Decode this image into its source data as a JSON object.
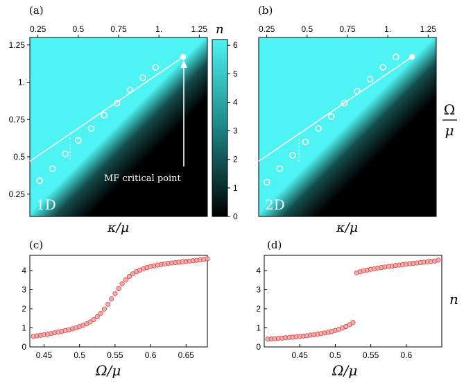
{
  "panels": {
    "a": {
      "label": "(a)",
      "dim_label": "1D"
    },
    "b": {
      "label": "(b)",
      "dim_label": "2D"
    },
    "c": {
      "label": "(c)"
    },
    "d": {
      "label": "(d)"
    }
  },
  "annotation": "MF critical point",
  "colorbar": {
    "title": "n",
    "ticks": [
      "0",
      "1",
      "2",
      "3",
      "4",
      "5",
      "6"
    ],
    "min": 0,
    "max": 6.2,
    "color_low": "#000000",
    "color_high": "#4ef3f3"
  },
  "labels": {
    "kappa_a": "κ/μ",
    "kappa_b": "κ/μ",
    "omega_right_num": "Ω",
    "omega_right_den": "μ",
    "omega_c": "Ω/μ",
    "omega_d": "Ω/μ",
    "n_right": "n"
  },
  "colors": {
    "marker_fill": "#f4a0a0",
    "marker_edge": "#d93030"
  },
  "chart_data": [
    {
      "panel": "a",
      "type": "heatmap",
      "xlim": [
        0.2,
        1.3
      ],
      "ylim": [
        0.1,
        1.3
      ],
      "x_ticks": [
        "0.25",
        "0.5",
        "0.75",
        "1.",
        "1.25"
      ],
      "x_tick_values": [
        0.25,
        0.5,
        0.75,
        1.0,
        1.25
      ],
      "y_ticks": [
        "0.25",
        "0.5",
        "0.75",
        "1.",
        "1.25"
      ],
      "y_tick_values": [
        0.25,
        0.5,
        0.75,
        1.0,
        1.25
      ],
      "critical_point": [
        1.15,
        1.17
      ],
      "mean_field_line": [
        [
          0.2,
          0.47
        ],
        [
          1.15,
          1.17
        ]
      ],
      "circles": [
        [
          0.26,
          0.34
        ],
        [
          0.34,
          0.42
        ],
        [
          0.42,
          0.52
        ],
        [
          0.5,
          0.61
        ],
        [
          0.58,
          0.69
        ],
        [
          0.66,
          0.78
        ],
        [
          0.74,
          0.86
        ],
        [
          0.82,
          0.95
        ],
        [
          0.9,
          1.03
        ],
        [
          0.98,
          1.1
        ]
      ],
      "dotted_segment": {
        "x": 0.45,
        "y": [
          0.48,
          0.64
        ]
      }
    },
    {
      "panel": "b",
      "type": "heatmap",
      "xlim": [
        0.2,
        1.3
      ],
      "ylim": [
        0.1,
        1.3
      ],
      "x_ticks": [
        "0.25",
        "0.5",
        "0.75",
        "1.",
        "1.25"
      ],
      "x_tick_values": [
        0.25,
        0.5,
        0.75,
        1.0,
        1.25
      ],
      "critical_point": [
        1.15,
        1.17
      ],
      "mean_field_line": [
        [
          0.2,
          0.47
        ],
        [
          1.15,
          1.17
        ]
      ],
      "circles": [
        [
          0.25,
          0.33
        ],
        [
          0.33,
          0.42
        ],
        [
          0.41,
          0.51
        ],
        [
          0.49,
          0.6
        ],
        [
          0.57,
          0.69
        ],
        [
          0.65,
          0.77
        ],
        [
          0.73,
          0.86
        ],
        [
          0.81,
          0.94
        ],
        [
          0.89,
          1.02
        ],
        [
          0.97,
          1.1
        ],
        [
          1.05,
          1.17
        ]
      ],
      "dotted_segment": {
        "x": 0.45,
        "y": [
          0.47,
          0.63
        ]
      }
    },
    {
      "panel": "c",
      "type": "scatter",
      "xlim": [
        0.43,
        0.68
      ],
      "ylim": [
        0,
        4.8
      ],
      "x_ticks": [
        "0.45",
        "0.5",
        "0.55",
        "0.6",
        "0.65"
      ],
      "x_tick_values": [
        0.45,
        0.5,
        0.55,
        0.6,
        0.65
      ],
      "y_ticks": [
        "0",
        "1",
        "2",
        "3",
        "4"
      ],
      "y_tick_values": [
        0,
        1,
        2,
        3,
        4
      ],
      "series": [
        {
          "x": [
            0.435,
            0.44,
            0.445,
            0.45,
            0.455,
            0.46,
            0.465,
            0.47,
            0.475,
            0.48,
            0.485,
            0.49,
            0.495,
            0.5,
            0.505,
            0.51,
            0.515,
            0.52,
            0.525,
            0.53,
            0.535,
            0.54,
            0.545,
            0.55,
            0.555,
            0.56,
            0.565,
            0.57,
            0.575,
            0.58,
            0.585,
            0.59,
            0.595,
            0.6,
            0.605,
            0.61,
            0.615,
            0.62,
            0.625,
            0.63,
            0.635,
            0.64,
            0.645,
            0.65,
            0.655,
            0.66,
            0.665,
            0.67,
            0.675,
            0.68
          ],
          "y": [
            0.55,
            0.58,
            0.61,
            0.64,
            0.67,
            0.7,
            0.74,
            0.78,
            0.82,
            0.86,
            0.9,
            0.95,
            1.0,
            1.06,
            1.13,
            1.21,
            1.31,
            1.43,
            1.58,
            1.77,
            1.99,
            2.24,
            2.52,
            2.8,
            3.07,
            3.31,
            3.52,
            3.69,
            3.83,
            3.94,
            4.03,
            4.1,
            4.16,
            4.21,
            4.25,
            4.29,
            4.32,
            4.35,
            4.38,
            4.4,
            4.42,
            4.44,
            4.46,
            4.48,
            4.5,
            4.52,
            4.54,
            4.56,
            4.58,
            4.62
          ]
        }
      ]
    },
    {
      "panel": "d",
      "type": "scatter",
      "xlim": [
        0.4,
        0.65
      ],
      "ylim": [
        0,
        4.8
      ],
      "x_ticks": [
        "0.45",
        "0.5",
        "0.55",
        "0.6"
      ],
      "x_tick_values": [
        0.45,
        0.5,
        0.55,
        0.6
      ],
      "y_ticks": [
        "0",
        "1",
        "2",
        "3",
        "4"
      ],
      "y_tick_values": [
        0,
        1,
        2,
        3,
        4
      ],
      "series": [
        {
          "x": [
            0.405,
            0.41,
            0.415,
            0.42,
            0.425,
            0.43,
            0.435,
            0.44,
            0.445,
            0.45,
            0.455,
            0.46,
            0.465,
            0.47,
            0.475,
            0.48,
            0.485,
            0.49,
            0.495,
            0.5,
            0.505,
            0.51,
            0.515,
            0.52,
            0.525
          ],
          "y": [
            0.41,
            0.42,
            0.43,
            0.45,
            0.46,
            0.48,
            0.5,
            0.51,
            0.53,
            0.55,
            0.57,
            0.59,
            0.62,
            0.64,
            0.67,
            0.7,
            0.73,
            0.77,
            0.81,
            0.86,
            0.92,
            0.99,
            1.07,
            1.16,
            1.28
          ]
        },
        {
          "x": [
            0.53,
            0.535,
            0.54,
            0.545,
            0.55,
            0.555,
            0.56,
            0.565,
            0.57,
            0.575,
            0.58,
            0.585,
            0.59,
            0.595,
            0.6,
            0.605,
            0.61,
            0.615,
            0.62,
            0.625,
            0.63,
            0.635,
            0.64,
            0.645
          ],
          "y": [
            3.88,
            3.94,
            3.99,
            4.03,
            4.07,
            4.1,
            4.13,
            4.16,
            4.19,
            4.22,
            4.24,
            4.27,
            4.29,
            4.31,
            4.34,
            4.36,
            4.38,
            4.4,
            4.42,
            4.44,
            4.46,
            4.48,
            4.5,
            4.55
          ]
        }
      ]
    }
  ]
}
